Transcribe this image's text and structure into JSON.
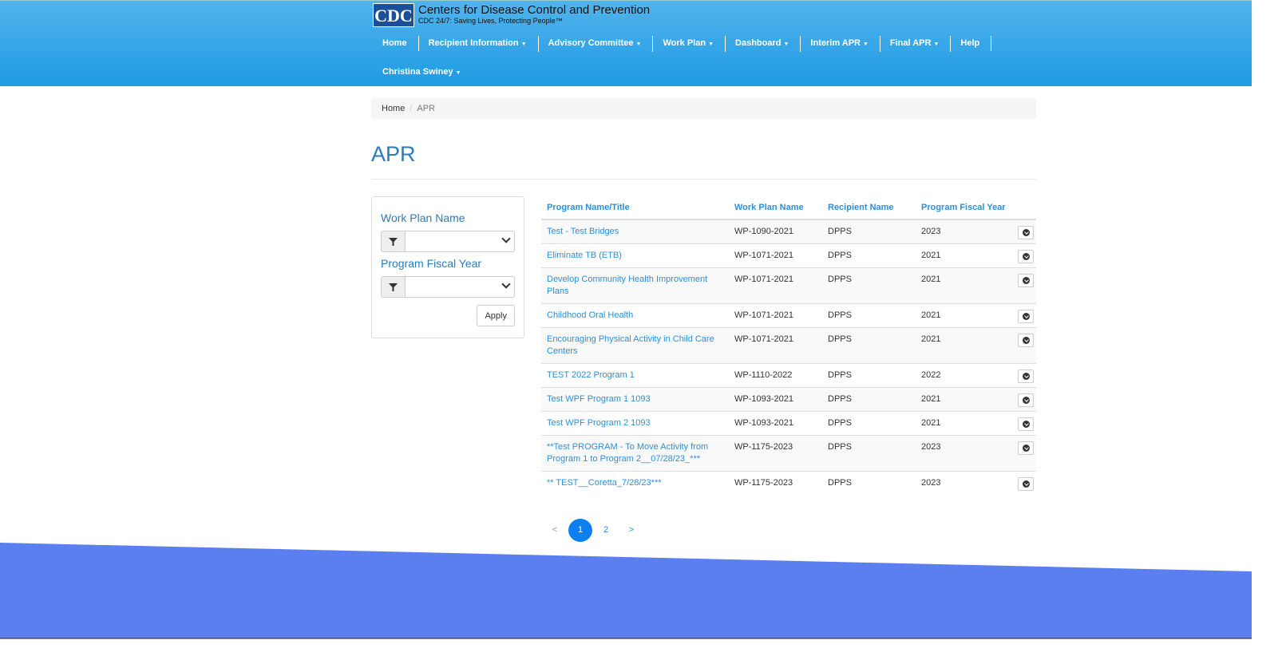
{
  "header": {
    "logo_text": "CDC",
    "org_name": "Centers for Disease Control and Prevention",
    "tagline": "CDC 24/7: Saving Lives, Protecting People™",
    "nav": [
      {
        "label": "Home",
        "dropdown": false
      },
      {
        "label": "Recipient Information",
        "dropdown": true
      },
      {
        "label": "Advisory Committee",
        "dropdown": true
      },
      {
        "label": "Work Plan",
        "dropdown": true
      },
      {
        "label": "Dashboard",
        "dropdown": true
      },
      {
        "label": "Interim APR",
        "dropdown": true
      },
      {
        "label": "Final APR",
        "dropdown": true
      },
      {
        "label": "Help",
        "dropdown": false
      }
    ],
    "user": "Christina Swiney"
  },
  "breadcrumb": {
    "home": "Home",
    "sep": "/",
    "current": "APR"
  },
  "page_title": "APR",
  "filters": {
    "work_plan_label": "Work Plan Name",
    "work_plan_value": "",
    "fiscal_year_label": "Program Fiscal Year",
    "fiscal_year_value": "",
    "apply": "Apply"
  },
  "table": {
    "columns": [
      "Program Name/Title",
      "Work Plan Name",
      "Recipient Name",
      "Program Fiscal Year"
    ],
    "rows": [
      [
        "Test - Test Bridges",
        "WP-1090-2021",
        "DPPS",
        "2023"
      ],
      [
        "Eliminate TB (ETB)",
        "WP-1071-2021",
        "DPPS",
        "2021"
      ],
      [
        "Develop Community Health Improvement Plans",
        "WP-1071-2021",
        "DPPS",
        "2021"
      ],
      [
        "Childhood Oral Health",
        "WP-1071-2021",
        "DPPS",
        "2021"
      ],
      [
        "Encouraging Physical Activity in Child Care Centers",
        "WP-1071-2021",
        "DPPS",
        "2021"
      ],
      [
        "TEST 2022 Program 1",
        "WP-1110-2022",
        "DPPS",
        "2022"
      ],
      [
        "Test WPF Program 1 1093",
        "WP-1093-2021",
        "DPPS",
        "2021"
      ],
      [
        "Test WPF Program 2 1093",
        "WP-1093-2021",
        "DPPS",
        "2021"
      ],
      [
        "**Test PROGRAM - To Move Activity from Program 1 to Program 2__07/28/23_***",
        "WP-1175-2023",
        "DPPS",
        "2023"
      ],
      [
        "** TEST__Coretta_7/28/23***",
        "WP-1175-2023",
        "DPPS",
        "2023"
      ]
    ]
  },
  "pagination": {
    "prev": "<",
    "pages": [
      "1",
      "2"
    ],
    "current": "1",
    "next": ">"
  },
  "colors": {
    "header_top": "#52b3ec",
    "header_bottom": "#1e9be3",
    "link": "#2b8fd9",
    "title": "#2b7bb9",
    "active_page": "#0d7ff0",
    "footer_wave": "#5b7fef"
  }
}
